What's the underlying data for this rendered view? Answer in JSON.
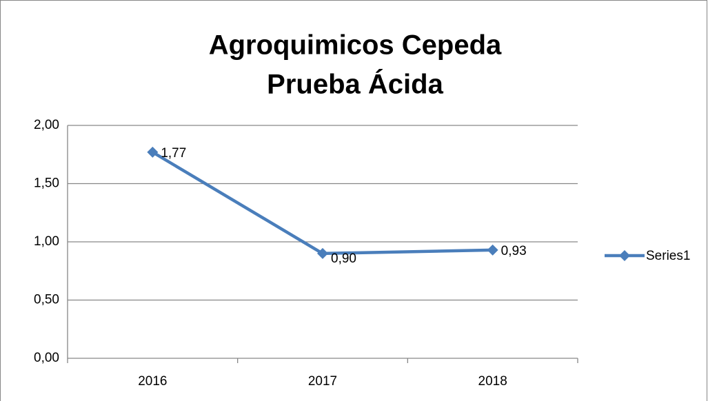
{
  "chart_data": {
    "type": "line",
    "title": [
      "Agroquimicos Cepeda",
      "Prueba Ácida"
    ],
    "categories": [
      "2016",
      "2017",
      "2018"
    ],
    "series": [
      {
        "name": "Series1",
        "color": "#4a7ebb",
        "values": [
          1.77,
          0.9,
          0.93
        ],
        "value_labels": [
          "1,77",
          "0,90",
          "0,93"
        ]
      }
    ],
    "ylim": [
      0,
      2
    ],
    "yticks": [
      {
        "value": 0,
        "label": "0,00"
      },
      {
        "value": 0.5,
        "label": "0,50"
      },
      {
        "value": 1,
        "label": "1,00"
      },
      {
        "value": 1.5,
        "label": "1,50"
      },
      {
        "value": 2,
        "label": "2,00"
      }
    ],
    "grid": true,
    "legend": "right"
  }
}
